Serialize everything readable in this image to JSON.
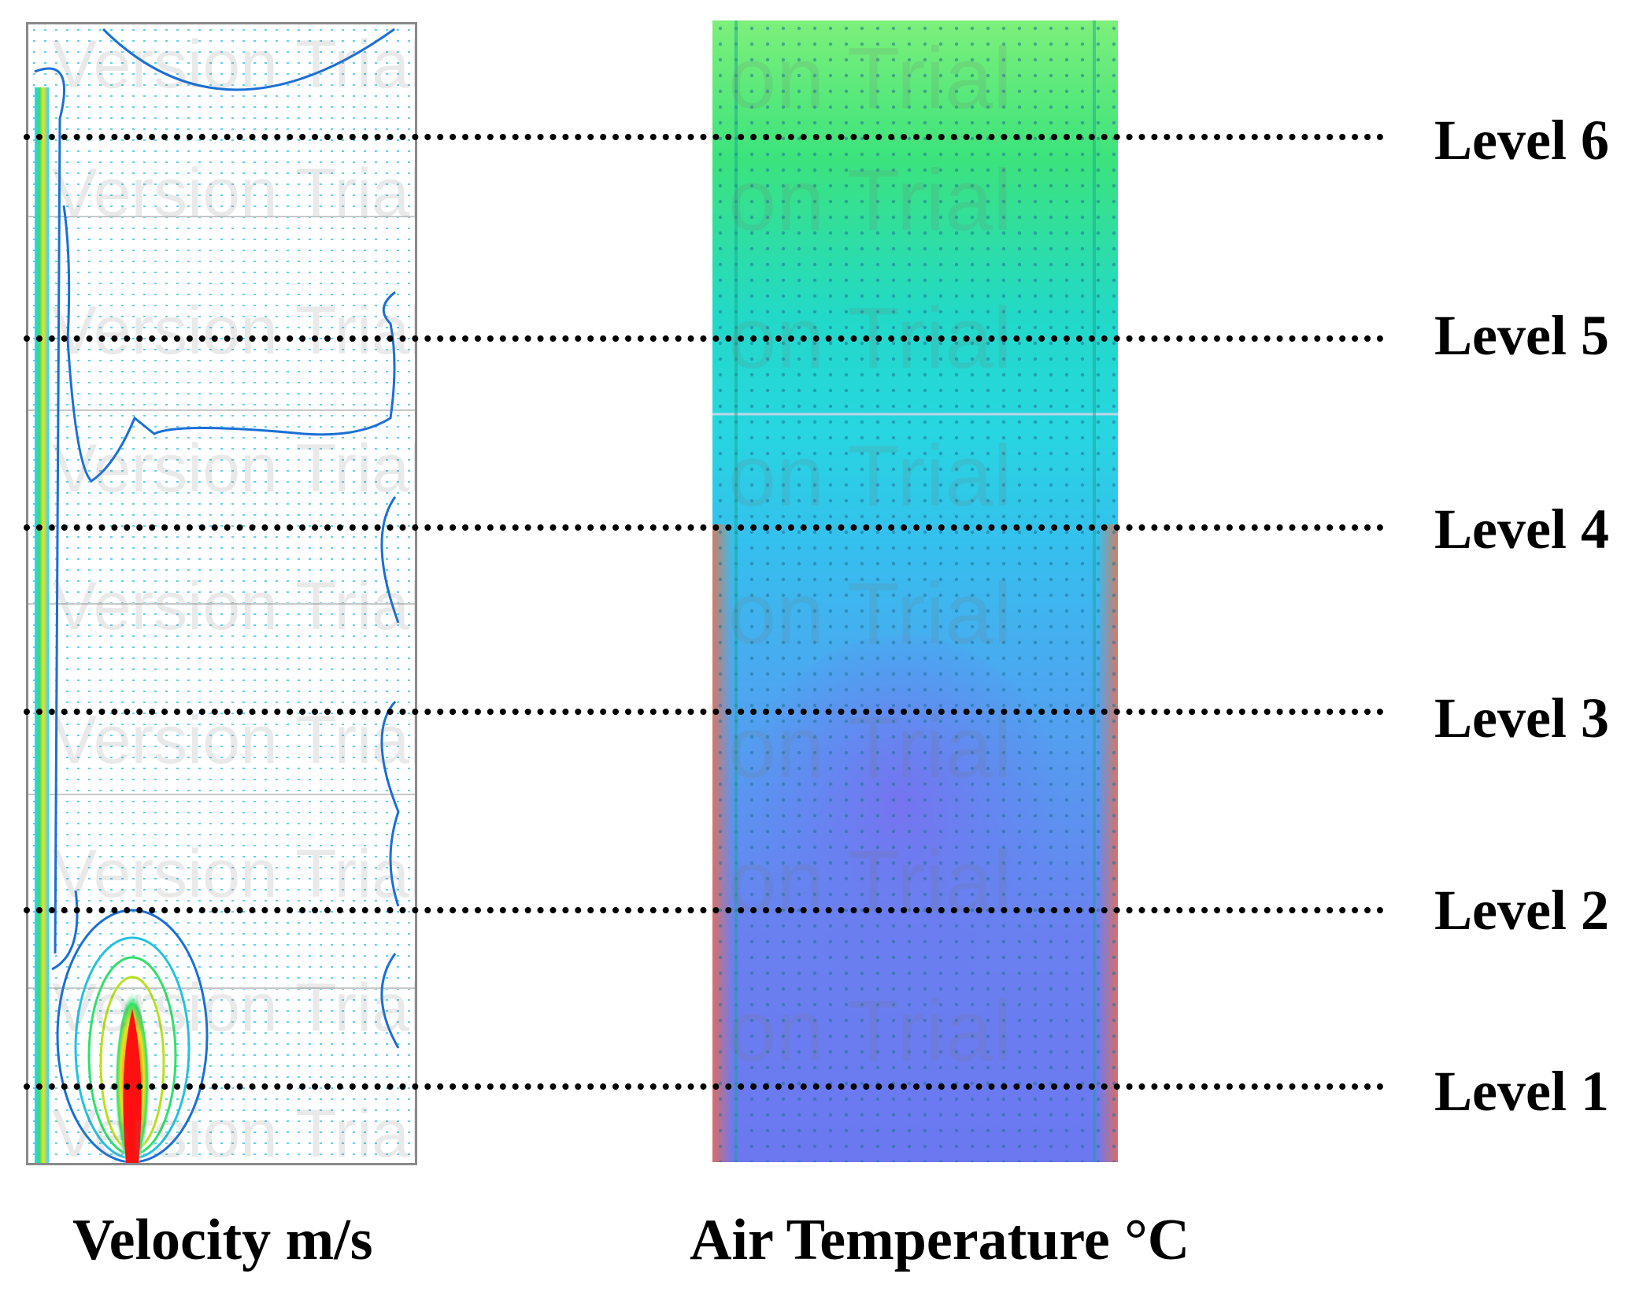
{
  "panels": {
    "velocity": {
      "caption": "Velocity m/s",
      "colors": {
        "background": "#ffffff",
        "border": "#8a8a8a",
        "vector": "#25c0e0",
        "contour": "#1a6fd6",
        "hot": "#ff1a1a"
      }
    },
    "temperature": {
      "caption": "Air Temperature °C",
      "colors": {
        "top": "#3ce37c",
        "middle": "#22d9d9",
        "lower": "#4fa4f0",
        "bottom": "#6b78f0",
        "edge_hot": "#ff6a3a",
        "vector": "#1e7fa0"
      }
    }
  },
  "levels": [
    {
      "label": "Level 6"
    },
    {
      "label": "Level 5"
    },
    {
      "label": "Level 4"
    },
    {
      "label": "Level 3"
    },
    {
      "label": "Level 2"
    },
    {
      "label": "Level 1"
    }
  ],
  "watermark": {
    "velocity_text": "Version Trial Versio",
    "temperature_text": "on Trial"
  }
}
